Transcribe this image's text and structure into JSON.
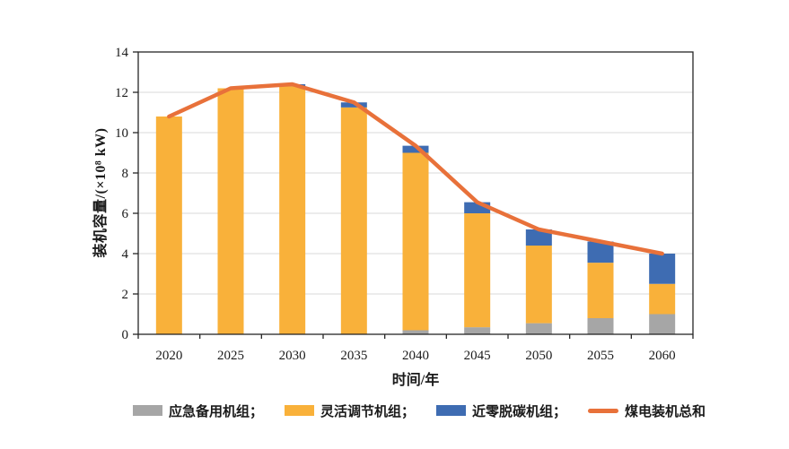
{
  "chart_data": {
    "type": "bar",
    "stacked": true,
    "title": "",
    "xlabel": "时间/年",
    "ylabel": "装机容量/(×10⁸ kW)",
    "categories": [
      "2020",
      "2025",
      "2030",
      "2035",
      "2040",
      "2045",
      "2050",
      "2055",
      "2060"
    ],
    "series": [
      {
        "name": "应急备用机组",
        "kind": "bar",
        "color": "#A6A6A6",
        "values": [
          0,
          0,
          0,
          0,
          0.2,
          0.35,
          0.55,
          0.8,
          1.0
        ]
      },
      {
        "name": "灵活调节机组",
        "kind": "bar",
        "color": "#F9B13A",
        "values": [
          10.8,
          12.2,
          12.3,
          11.25,
          8.8,
          5.65,
          3.85,
          2.75,
          1.5
        ]
      },
      {
        "name": "近零脱碳机组",
        "kind": "bar",
        "color": "#3E6CB2",
        "values": [
          0,
          0,
          0.1,
          0.25,
          0.35,
          0.55,
          0.8,
          1.05,
          1.5
        ]
      },
      {
        "name": "煤电装机总和",
        "kind": "line",
        "color": "#E8713A",
        "values": [
          10.8,
          12.2,
          12.4,
          11.5,
          9.35,
          6.55,
          5.2,
          4.6,
          4.0
        ]
      }
    ],
    "ylim": [
      0,
      14
    ],
    "yticks": [
      0,
      2,
      4,
      6,
      8,
      10,
      12,
      14
    ],
    "grid": true,
    "legend_position": "bottom"
  },
  "legend": {
    "items": [
      {
        "label": "应急备用机组；"
      },
      {
        "label": "灵活调节机组；"
      },
      {
        "label": "近零脱碳机组；"
      },
      {
        "label": "煤电装机总和"
      }
    ]
  },
  "colors": {
    "grid": "#D9D9D9",
    "axis": "#262626",
    "text": "#1a1a1a"
  }
}
